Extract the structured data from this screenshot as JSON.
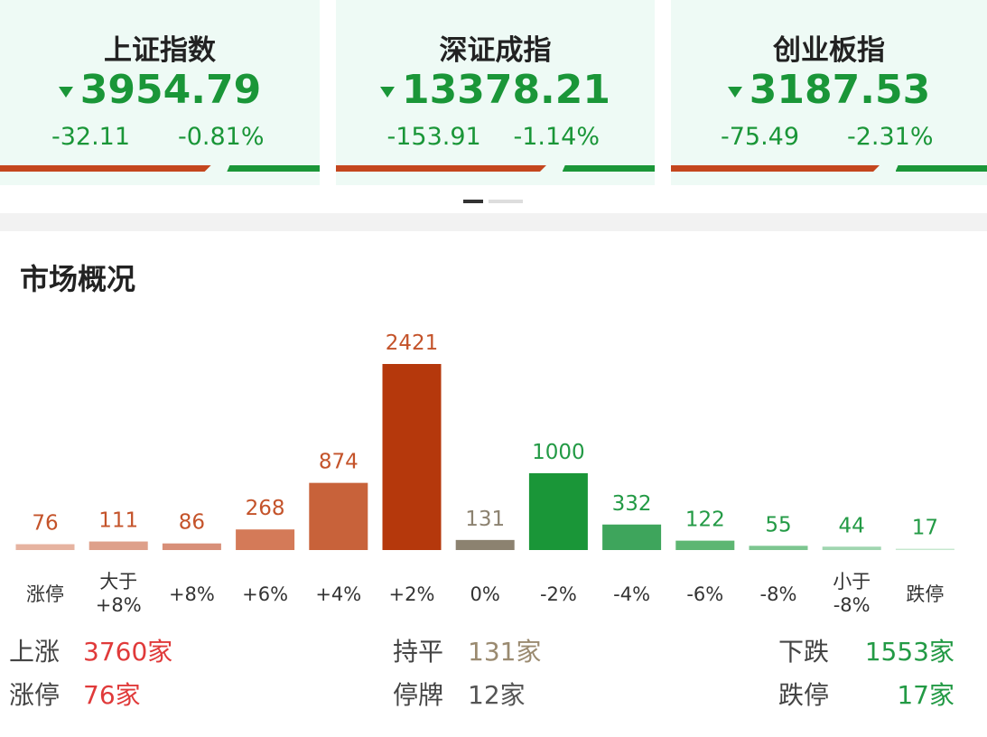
{
  "indices": [
    {
      "name": "上证指数",
      "value": "3954.79",
      "change": "-32.11",
      "percent": "-0.81%"
    },
    {
      "name": "深证成指",
      "value": "13378.21",
      "change": "-153.91",
      "percent": "-1.14%"
    },
    {
      "name": "创业板指",
      "value": "3187.53",
      "change": "-75.49",
      "percent": "-2.31%"
    }
  ],
  "section_title": "市场概况",
  "chart_data": {
    "type": "bar",
    "categories": [
      "涨停",
      "大于\n+8%",
      "+8%",
      "+6%",
      "+4%",
      "+2%",
      "0%",
      "-2%",
      "-4%",
      "-6%",
      "-8%",
      "小于\n-8%",
      "跌停"
    ],
    "values": [
      76,
      111,
      86,
      268,
      874,
      2421,
      131,
      1000,
      332,
      122,
      55,
      44,
      17
    ],
    "colors": [
      "#e6b3a0",
      "#dea08a",
      "#d88f78",
      "#d47a58",
      "#c8623a",
      "#b5380c",
      "#8c8270",
      "#1a9638",
      "#3ea55c",
      "#5db672",
      "#7dc690",
      "#a0d6b0",
      "#c6e8cf"
    ],
    "label_colors": [
      "#c4532a",
      "#c4532a",
      "#c4532a",
      "#c4532a",
      "#c4532a",
      "#c4532a",
      "#8c8270",
      "#239a45",
      "#239a45",
      "#239a45",
      "#239a45",
      "#239a45",
      "#239a45"
    ]
  },
  "summary": [
    [
      {
        "label": "上涨",
        "value": "3760家"
      },
      {
        "label": "持平",
        "value": "131家"
      },
      {
        "label": "下跌",
        "value": "1553家"
      }
    ],
    [
      {
        "label": "涨停",
        "value": "76家"
      },
      {
        "label": "停牌",
        "value": "12家"
      },
      {
        "label": "跌停",
        "value": "17家"
      }
    ]
  ]
}
